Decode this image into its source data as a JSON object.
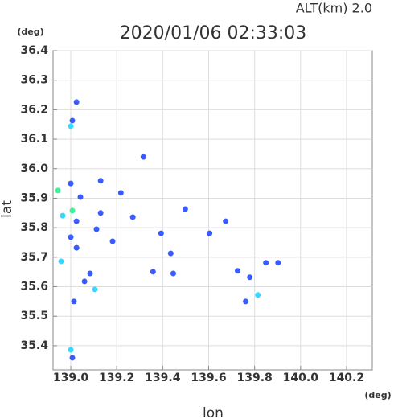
{
  "chart_data": {
    "type": "scatter",
    "title": "2020/01/06 02:33:03",
    "subtitle": "ALT(km) 2.0",
    "x_label": "lon",
    "y_label": "lat",
    "x_unit": "(deg)",
    "y_unit": "(deg)",
    "xlim": [
      138.923,
      140.312
    ],
    "ylim": [
      35.318,
      36.4
    ],
    "xticks": [
      {
        "value": 139,
        "label": "139.0"
      },
      139.2,
      139.4,
      139.6,
      139.8,
      {
        "value": 140,
        "label": "140.0"
      },
      140.2
    ],
    "yticks": [
      35.4,
      35.5,
      35.6,
      35.7,
      35.8,
      35.9,
      {
        "value": 36,
        "label": "36.0"
      },
      36.1,
      36.2,
      36.3,
      36.4
    ],
    "grid": true,
    "series": [
      {
        "color": "#3a5cff",
        "x": [
          139.025,
          139.007,
          139.0,
          139.042,
          139.025,
          139.0,
          139.025,
          139.06,
          139.014,
          139.007,
          139.13,
          139.218,
          139.316,
          139.498,
          139.393,
          139.604,
          139.674,
          139.435,
          139.358,
          139.849,
          139.902,
          139.761,
          139.779,
          139.726,
          139.112,
          139.13,
          139.27,
          139.182,
          139.084,
          139.446
        ],
        "y": [
          36.226,
          36.163,
          35.95,
          35.904,
          35.822,
          35.768,
          35.732,
          35.618,
          35.55,
          35.359,
          35.959,
          35.918,
          36.04,
          35.863,
          35.781,
          35.781,
          35.822,
          35.713,
          35.651,
          35.681,
          35.681,
          35.55,
          35.632,
          35.654,
          35.795,
          35.85,
          35.836,
          35.754,
          35.645,
          35.645
        ]
      },
      {
        "color": "#36d8ff",
        "x": [
          139.0,
          138.965,
          138.958,
          139.105,
          139.0,
          139.814
        ],
        "y": [
          36.144,
          35.841,
          35.686,
          35.591,
          35.386,
          35.572
        ]
      },
      {
        "color": "#3cf29a",
        "x": [
          138.944,
          139.007
        ],
        "y": [
          35.926,
          35.858
        ]
      }
    ]
  }
}
